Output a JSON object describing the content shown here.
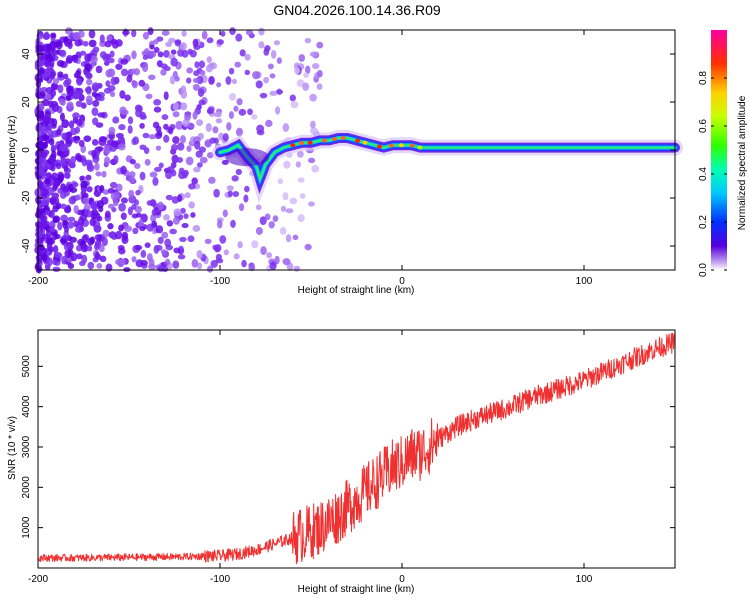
{
  "chart_data": [
    {
      "type": "heatmap",
      "title": "GN04.2026.100.14.36.R09",
      "xlabel": "Height of straight line (km)",
      "ylabel": "Frequency (Hz)",
      "xlim": [
        -200,
        150
      ],
      "ylim": [
        -50,
        50
      ],
      "xticks": [
        -200,
        -100,
        0,
        100
      ],
      "yticks": [
        -40,
        -20,
        0,
        20,
        40
      ],
      "colorbar": {
        "label": "Normalized spectral amplitude",
        "range": [
          0.0,
          1.0
        ],
        "ticks": [
          0.0,
          0.2,
          0.4,
          0.6,
          0.8
        ]
      },
      "ridge": {
        "description_x": [
          -100,
          -95,
          -90,
          -85,
          -80,
          -78,
          -75,
          -70,
          -65,
          -60,
          -55,
          -50,
          -45,
          -40,
          -35,
          -30,
          -25,
          -20,
          -15,
          -10,
          -5,
          0,
          5,
          10,
          15,
          20,
          40,
          60,
          80,
          100,
          120,
          150
        ],
        "description_y": [
          -1,
          0,
          2,
          -3,
          -7,
          -12,
          -6,
          -1,
          1,
          2,
          3,
          3,
          4,
          4,
          5,
          5,
          4,
          3,
          2,
          1,
          2,
          2,
          2,
          1,
          1,
          1,
          1,
          1,
          1,
          1,
          1,
          1
        ]
      }
    },
    {
      "type": "line",
      "xlabel": "Height of straight line (km)",
      "ylabel": "SNR (10 * v/v)",
      "xlim": [
        -200,
        150
      ],
      "ylim": [
        0,
        5900
      ],
      "xticks": [
        -200,
        -100,
        0,
        100
      ],
      "yticks": [
        1000,
        2000,
        3000,
        4000,
        5000
      ],
      "series": [
        {
          "name": "SNR",
          "color": "#f03030",
          "x": [
            -200,
            -180,
            -160,
            -140,
            -120,
            -100,
            -90,
            -80,
            -70,
            -60,
            -50,
            -45,
            -40,
            -35,
            -30,
            -25,
            -20,
            -15,
            -10,
            -5,
            0,
            5,
            10,
            15,
            20,
            30,
            40,
            50,
            60,
            70,
            80,
            90,
            100,
            110,
            120,
            130,
            140,
            150
          ],
          "y": [
            250,
            250,
            260,
            270,
            280,
            300,
            350,
            450,
            600,
            750,
            900,
            1000,
            1150,
            1300,
            1500,
            1700,
            1900,
            2100,
            2300,
            2500,
            2600,
            2800,
            2850,
            3000,
            3200,
            3500,
            3700,
            3850,
            4000,
            4200,
            4350,
            4500,
            4650,
            4850,
            5050,
            5250,
            5450,
            5600
          ]
        }
      ]
    }
  ]
}
